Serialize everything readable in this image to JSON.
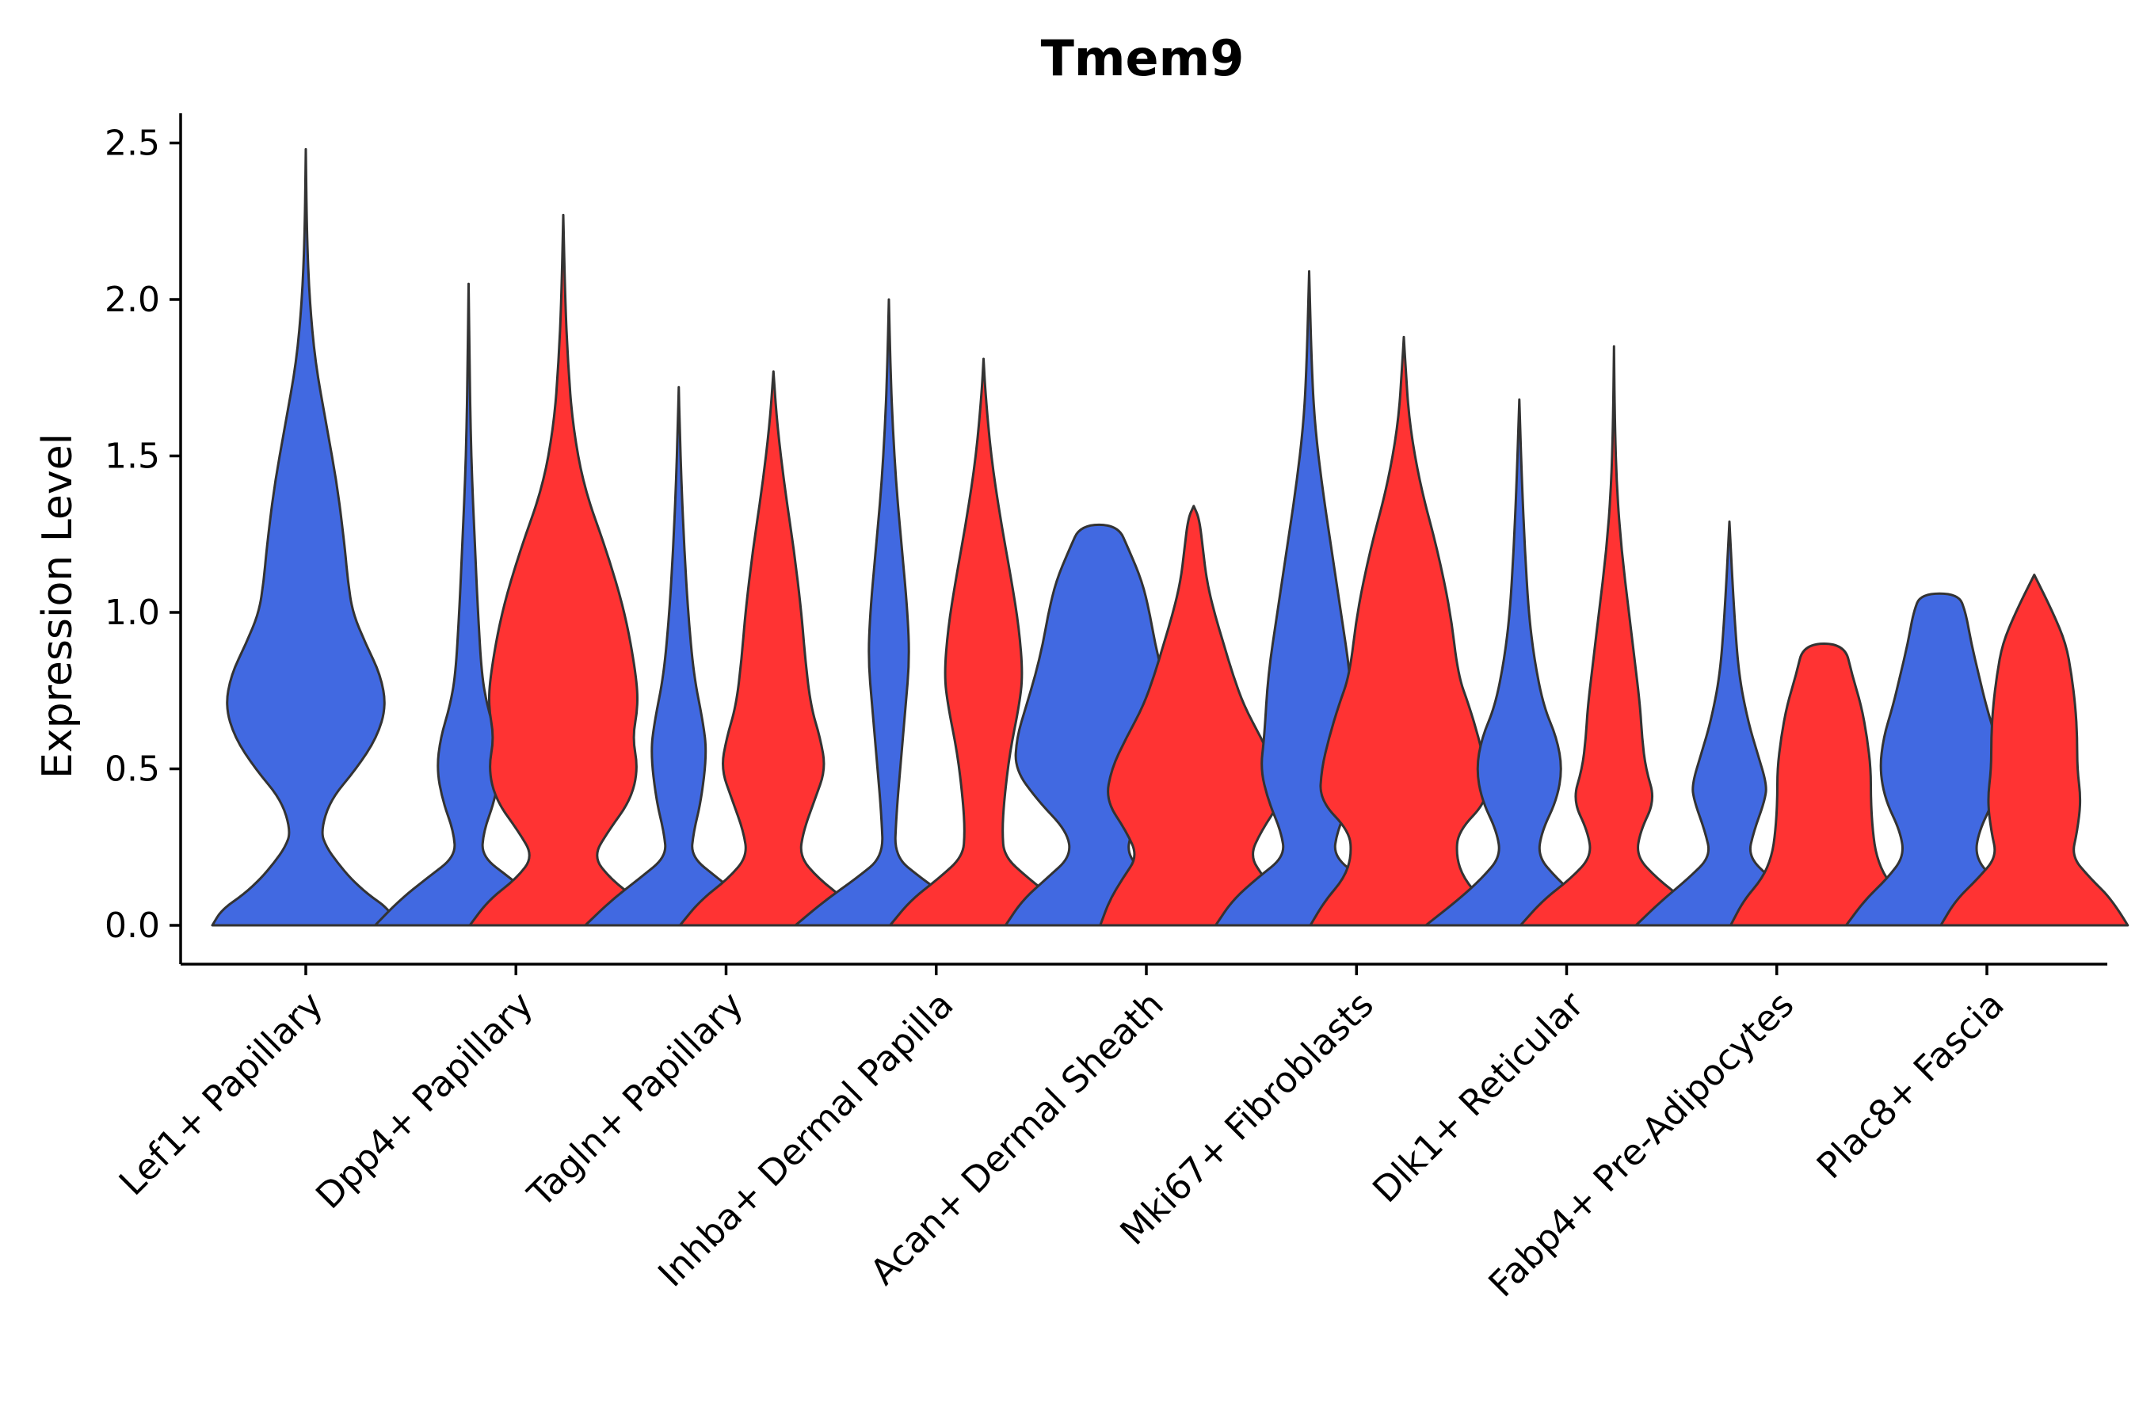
{
  "chart_data": {
    "type": "violin",
    "title": "Tmem9",
    "xlabel": "",
    "ylabel": "Expression Level",
    "ylim": [
      -0.13,
      2.62
    ],
    "yticks": [
      0.0,
      0.5,
      1.0,
      1.5,
      2.0,
      2.5
    ],
    "ytick_labels": [
      "0.0",
      "0.5",
      "1.0",
      "1.5",
      "2.0",
      "2.5"
    ],
    "colors": {
      "blue": "#4169E1",
      "red": "#FF3333"
    },
    "categories": [
      "Lef1+ Papillary",
      "Dpp4+ Papillary",
      "Tagln+ Papillary",
      "Inhba+ Dermal Papilla",
      "Acan+ Dermal Sheath",
      "Mki67+ Fibroblasts",
      "Dlk1+ Reticular",
      "Fabp4+ Pre-Adipocytes",
      "Plac8+ Fascia"
    ],
    "violins": [
      {
        "group": 0,
        "color": "blue",
        "max": 2.48,
        "profile": [
          [
            0,
            1.0
          ],
          [
            0.05,
            0.9
          ],
          [
            0.1,
            0.66
          ],
          [
            0.15,
            0.48
          ],
          [
            0.2,
            0.34
          ],
          [
            0.25,
            0.22
          ],
          [
            0.3,
            0.16
          ],
          [
            0.4,
            0.26
          ],
          [
            0.5,
            0.54
          ],
          [
            0.6,
            0.76
          ],
          [
            0.7,
            0.86
          ],
          [
            0.8,
            0.8
          ],
          [
            0.9,
            0.64
          ],
          [
            1.0,
            0.5
          ],
          [
            1.1,
            0.45
          ],
          [
            1.2,
            0.42
          ],
          [
            1.4,
            0.34
          ],
          [
            1.6,
            0.22
          ],
          [
            1.8,
            0.1
          ],
          [
            2.0,
            0.04
          ],
          [
            2.2,
            0.012
          ],
          [
            2.48,
            0
          ]
        ]
      },
      {
        "group": 1,
        "color": "blue",
        "max": 2.05,
        "profile": [
          [
            0,
            1.0
          ],
          [
            0.08,
            0.74
          ],
          [
            0.15,
            0.45
          ],
          [
            0.22,
            0.14
          ],
          [
            0.3,
            0.16
          ],
          [
            0.4,
            0.28
          ],
          [
            0.5,
            0.34
          ],
          [
            0.6,
            0.3
          ],
          [
            0.7,
            0.2
          ],
          [
            0.8,
            0.14
          ],
          [
            1.0,
            0.1
          ],
          [
            1.2,
            0.07
          ],
          [
            1.4,
            0.04
          ],
          [
            1.6,
            0.02
          ],
          [
            1.8,
            0.01
          ],
          [
            2.05,
            0
          ]
        ]
      },
      {
        "group": 1,
        "color": "red",
        "max": 2.27,
        "profile": [
          [
            0,
            1.0
          ],
          [
            0.08,
            0.8
          ],
          [
            0.15,
            0.5
          ],
          [
            0.22,
            0.32
          ],
          [
            0.3,
            0.48
          ],
          [
            0.4,
            0.72
          ],
          [
            0.5,
            0.8
          ],
          [
            0.6,
            0.74
          ],
          [
            0.7,
            0.8
          ],
          [
            0.8,
            0.78
          ],
          [
            1.0,
            0.66
          ],
          [
            1.2,
            0.46
          ],
          [
            1.4,
            0.22
          ],
          [
            1.6,
            0.1
          ],
          [
            1.8,
            0.05
          ],
          [
            2.0,
            0.02
          ],
          [
            2.27,
            0
          ]
        ]
      },
      {
        "group": 2,
        "color": "blue",
        "max": 1.72,
        "profile": [
          [
            0,
            1.0
          ],
          [
            0.08,
            0.72
          ],
          [
            0.15,
            0.42
          ],
          [
            0.22,
            0.13
          ],
          [
            0.3,
            0.16
          ],
          [
            0.4,
            0.24
          ],
          [
            0.55,
            0.3
          ],
          [
            0.65,
            0.26
          ],
          [
            0.8,
            0.16
          ],
          [
            1.0,
            0.1
          ],
          [
            1.2,
            0.06
          ],
          [
            1.4,
            0.03
          ],
          [
            1.6,
            0.01
          ],
          [
            1.72,
            0
          ]
        ]
      },
      {
        "group": 2,
        "color": "red",
        "max": 1.77,
        "profile": [
          [
            0,
            1.0
          ],
          [
            0.08,
            0.78
          ],
          [
            0.15,
            0.48
          ],
          [
            0.22,
            0.28
          ],
          [
            0.3,
            0.32
          ],
          [
            0.4,
            0.44
          ],
          [
            0.5,
            0.56
          ],
          [
            0.6,
            0.5
          ],
          [
            0.7,
            0.4
          ],
          [
            0.85,
            0.34
          ],
          [
            1.0,
            0.3
          ],
          [
            1.2,
            0.22
          ],
          [
            1.4,
            0.12
          ],
          [
            1.6,
            0.04
          ],
          [
            1.77,
            0
          ]
        ]
      },
      {
        "group": 3,
        "color": "blue",
        "max": 2.0,
        "profile": [
          [
            0,
            1.0
          ],
          [
            0.08,
            0.68
          ],
          [
            0.15,
            0.35
          ],
          [
            0.22,
            0.06
          ],
          [
            0.35,
            0.08
          ],
          [
            0.5,
            0.12
          ],
          [
            0.7,
            0.18
          ],
          [
            0.85,
            0.22
          ],
          [
            1.0,
            0.2
          ],
          [
            1.2,
            0.14
          ],
          [
            1.4,
            0.08
          ],
          [
            1.6,
            0.04
          ],
          [
            1.8,
            0.015
          ],
          [
            2.0,
            0
          ]
        ]
      },
      {
        "group": 3,
        "color": "red",
        "max": 1.81,
        "profile": [
          [
            0,
            1.0
          ],
          [
            0.08,
            0.78
          ],
          [
            0.15,
            0.48
          ],
          [
            0.22,
            0.22
          ],
          [
            0.3,
            0.2
          ],
          [
            0.4,
            0.22
          ],
          [
            0.55,
            0.28
          ],
          [
            0.7,
            0.38
          ],
          [
            0.8,
            0.42
          ],
          [
            0.95,
            0.38
          ],
          [
            1.1,
            0.3
          ],
          [
            1.3,
            0.18
          ],
          [
            1.5,
            0.08
          ],
          [
            1.7,
            0.02
          ],
          [
            1.81,
            0
          ]
        ]
      },
      {
        "group": 4,
        "color": "blue",
        "max": 1.28,
        "profile": [
          [
            0,
            1.0
          ],
          [
            0.08,
            0.82
          ],
          [
            0.15,
            0.56
          ],
          [
            0.22,
            0.3
          ],
          [
            0.3,
            0.34
          ],
          [
            0.4,
            0.66
          ],
          [
            0.5,
            0.9
          ],
          [
            0.6,
            0.88
          ],
          [
            0.7,
            0.78
          ],
          [
            0.8,
            0.68
          ],
          [
            0.9,
            0.6
          ],
          [
            1.0,
            0.54
          ],
          [
            1.1,
            0.46
          ],
          [
            1.2,
            0.32
          ],
          [
            1.28,
            0.2
          ]
        ]
      },
      {
        "group": 4,
        "color": "red",
        "max": 1.34,
        "profile": [
          [
            0,
            1.0
          ],
          [
            0.08,
            0.9
          ],
          [
            0.15,
            0.76
          ],
          [
            0.22,
            0.6
          ],
          [
            0.3,
            0.72
          ],
          [
            0.4,
            0.94
          ],
          [
            0.5,
            0.88
          ],
          [
            0.6,
            0.72
          ],
          [
            0.7,
            0.54
          ],
          [
            0.8,
            0.42
          ],
          [
            0.9,
            0.32
          ],
          [
            1.0,
            0.22
          ],
          [
            1.1,
            0.14
          ],
          [
            1.2,
            0.1
          ],
          [
            1.3,
            0.06
          ],
          [
            1.34,
            0
          ]
        ]
      },
      {
        "group": 5,
        "color": "blue",
        "max": 2.09,
        "profile": [
          [
            0,
            1.0
          ],
          [
            0.08,
            0.82
          ],
          [
            0.15,
            0.56
          ],
          [
            0.22,
            0.26
          ],
          [
            0.3,
            0.3
          ],
          [
            0.4,
            0.44
          ],
          [
            0.5,
            0.52
          ],
          [
            0.6,
            0.48
          ],
          [
            0.8,
            0.44
          ],
          [
            1.0,
            0.34
          ],
          [
            1.2,
            0.24
          ],
          [
            1.4,
            0.14
          ],
          [
            1.6,
            0.06
          ],
          [
            1.8,
            0.025
          ],
          [
            2.09,
            0
          ]
        ]
      },
      {
        "group": 5,
        "color": "red",
        "max": 1.88,
        "profile": [
          [
            0,
            1.0
          ],
          [
            0.08,
            0.84
          ],
          [
            0.15,
            0.64
          ],
          [
            0.22,
            0.56
          ],
          [
            0.3,
            0.58
          ],
          [
            0.4,
            0.9
          ],
          [
            0.5,
            0.88
          ],
          [
            0.6,
            0.8
          ],
          [
            0.7,
            0.7
          ],
          [
            0.8,
            0.58
          ],
          [
            1.0,
            0.5
          ],
          [
            1.2,
            0.36
          ],
          [
            1.4,
            0.18
          ],
          [
            1.6,
            0.06
          ],
          [
            1.8,
            0.015
          ],
          [
            1.88,
            0
          ]
        ]
      },
      {
        "group": 6,
        "color": "blue",
        "max": 1.68,
        "profile": [
          [
            0,
            1.0
          ],
          [
            0.08,
            0.66
          ],
          [
            0.15,
            0.4
          ],
          [
            0.22,
            0.2
          ],
          [
            0.3,
            0.24
          ],
          [
            0.4,
            0.4
          ],
          [
            0.5,
            0.46
          ],
          [
            0.6,
            0.4
          ],
          [
            0.7,
            0.26
          ],
          [
            0.85,
            0.16
          ],
          [
            1.0,
            0.1
          ],
          [
            1.2,
            0.06
          ],
          [
            1.4,
            0.03
          ],
          [
            1.68,
            0
          ]
        ]
      },
      {
        "group": 6,
        "color": "red",
        "max": 1.85,
        "profile": [
          [
            0,
            1.0
          ],
          [
            0.08,
            0.76
          ],
          [
            0.15,
            0.46
          ],
          [
            0.22,
            0.24
          ],
          [
            0.3,
            0.28
          ],
          [
            0.4,
            0.44
          ],
          [
            0.5,
            0.34
          ],
          [
            0.6,
            0.3
          ],
          [
            0.7,
            0.28
          ],
          [
            0.85,
            0.22
          ],
          [
            1.0,
            0.16
          ],
          [
            1.2,
            0.08
          ],
          [
            1.4,
            0.03
          ],
          [
            1.6,
            0.01
          ],
          [
            1.85,
            0
          ]
        ]
      },
      {
        "group": 7,
        "color": "blue",
        "max": 1.29,
        "profile": [
          [
            0,
            1.0
          ],
          [
            0.08,
            0.72
          ],
          [
            0.15,
            0.44
          ],
          [
            0.22,
            0.2
          ],
          [
            0.3,
            0.26
          ],
          [
            0.4,
            0.38
          ],
          [
            0.45,
            0.4
          ],
          [
            0.55,
            0.3
          ],
          [
            0.65,
            0.2
          ],
          [
            0.8,
            0.1
          ],
          [
            1.0,
            0.05
          ],
          [
            1.29,
            0
          ]
        ]
      },
      {
        "group": 7,
        "color": "red",
        "max": 0.9,
        "profile": [
          [
            0,
            1.0
          ],
          [
            0.08,
            0.86
          ],
          [
            0.15,
            0.66
          ],
          [
            0.22,
            0.56
          ],
          [
            0.3,
            0.52
          ],
          [
            0.4,
            0.5
          ],
          [
            0.5,
            0.5
          ],
          [
            0.6,
            0.46
          ],
          [
            0.7,
            0.4
          ],
          [
            0.8,
            0.3
          ],
          [
            0.9,
            0.22
          ]
        ]
      },
      {
        "group": 8,
        "color": "blue",
        "max": 1.06,
        "profile": [
          [
            0,
            1.0
          ],
          [
            0.08,
            0.8
          ],
          [
            0.15,
            0.56
          ],
          [
            0.22,
            0.38
          ],
          [
            0.3,
            0.42
          ],
          [
            0.4,
            0.58
          ],
          [
            0.5,
            0.64
          ],
          [
            0.6,
            0.6
          ],
          [
            0.7,
            0.5
          ],
          [
            0.8,
            0.42
          ],
          [
            0.9,
            0.34
          ],
          [
            1.0,
            0.28
          ],
          [
            1.06,
            0.2
          ]
        ]
      },
      {
        "group": 8,
        "color": "red",
        "max": 1.12,
        "profile": [
          [
            0,
            1.0
          ],
          [
            0.08,
            0.84
          ],
          [
            0.15,
            0.6
          ],
          [
            0.22,
            0.4
          ],
          [
            0.3,
            0.46
          ],
          [
            0.4,
            0.5
          ],
          [
            0.5,
            0.46
          ],
          [
            0.6,
            0.46
          ],
          [
            0.7,
            0.44
          ],
          [
            0.8,
            0.4
          ],
          [
            0.9,
            0.34
          ],
          [
            1.0,
            0.2
          ],
          [
            1.12,
            0
          ]
        ]
      }
    ]
  }
}
